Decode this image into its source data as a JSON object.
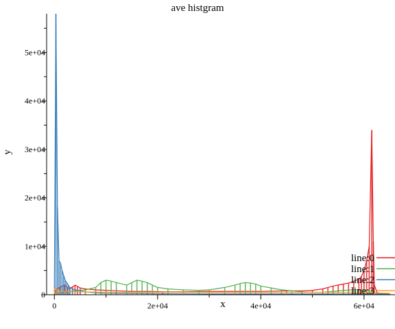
{
  "chart_data": {
    "type": "line",
    "title": "ave histgram",
    "xlabel": "x",
    "ylabel": "y",
    "xlim": [
      -1500,
      66000
    ],
    "ylim": [
      0,
      58000
    ],
    "x_ticks": [
      0,
      20000,
      40000,
      60000
    ],
    "x_tick_labels": [
      "0",
      "2e+04",
      "4e+04",
      "6e+04"
    ],
    "y_ticks": [
      0,
      10000,
      20000,
      30000,
      40000,
      50000
    ],
    "y_tick_labels": [
      "0",
      "1e+04",
      "2e+04",
      "3e+04",
      "4e+04",
      "5e+04"
    ],
    "legend_position": "bottom-right",
    "series": [
      {
        "name": "line:0",
        "color": "#e41a1c",
        "x": [
          0,
          500,
          1000,
          1500,
          2000,
          2500,
          3000,
          3500,
          4000,
          4500,
          5000,
          6000,
          8000,
          10000,
          12000,
          15000,
          18000,
          21000,
          25000,
          30000,
          35000,
          40000,
          45000,
          48000,
          50000,
          52000,
          53000,
          54000,
          55000,
          56000,
          57000,
          58000,
          59000,
          59500,
          60000,
          60500,
          61000,
          61500,
          61800,
          62000,
          62500,
          63000,
          64000,
          65000
        ],
        "y": [
          500,
          1200,
          1500,
          1800,
          2000,
          1500,
          1300,
          1600,
          2000,
          1700,
          1400,
          1200,
          1000,
          900,
          800,
          700,
          700,
          600,
          600,
          700,
          700,
          700,
          800,
          800,
          900,
          1200,
          1500,
          1800,
          2000,
          2200,
          2400,
          2800,
          3200,
          3800,
          5000,
          7000,
          10000,
          34000,
          11000,
          2000,
          500,
          300,
          200,
          200
        ]
      },
      {
        "name": "line:1",
        "color": "#4daf4a",
        "x": [
          0,
          2000,
          4000,
          6000,
          8000,
          9000,
          10000,
          11000,
          12000,
          14000,
          15000,
          16000,
          17000,
          18000,
          19000,
          20000,
          22000,
          25000,
          28000,
          30000,
          33000,
          35000,
          36000,
          37000,
          38000,
          39000,
          40000,
          42000,
          44000,
          46000,
          48000,
          50000,
          52000,
          54000,
          56000,
          58000,
          60000,
          61000,
          62000,
          64000,
          65000
        ],
        "y": [
          200,
          500,
          800,
          1000,
          1500,
          2500,
          3000,
          2800,
          2500,
          2000,
          2500,
          3000,
          2800,
          2500,
          2000,
          1500,
          1200,
          1000,
          900,
          1000,
          1500,
          2000,
          2300,
          2500,
          2400,
          2200,
          1800,
          1400,
          1000,
          800,
          600,
          500,
          500,
          700,
          900,
          1000,
          1000,
          800,
          400,
          200,
          200
        ]
      },
      {
        "name": "line:2",
        "color": "#377eb8",
        "x": [
          0,
          300,
          600,
          900,
          1200,
          1500,
          1800,
          2100,
          2400,
          2700,
          3000,
          3500,
          4000,
          5000,
          6000,
          8000,
          10000,
          20000,
          30000,
          40000,
          50000,
          60000,
          65000
        ],
        "y": [
          2000,
          58000,
          18000,
          7000,
          6500,
          5000,
          4000,
          3000,
          2500,
          2000,
          1500,
          1200,
          1000,
          800,
          600,
          400,
          300,
          200,
          150,
          150,
          150,
          150,
          150
        ]
      },
      {
        "name": "line:3",
        "color": "#ff9a1f",
        "x": [
          0,
          500,
          1000,
          2000,
          4000,
          6000,
          10000,
          15000,
          20000,
          25000,
          30000,
          35000,
          40000,
          45000,
          50000,
          55000,
          60000,
          62000,
          65000
        ],
        "y": [
          1500,
          1000,
          800,
          700,
          600,
          600,
          500,
          500,
          500,
          500,
          500,
          500,
          500,
          500,
          500,
          500,
          500,
          400,
          300
        ]
      }
    ]
  }
}
